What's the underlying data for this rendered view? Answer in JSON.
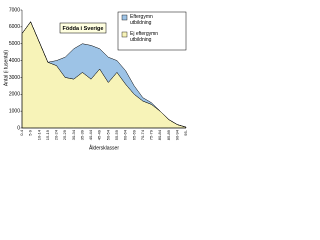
{
  "chart_data": {
    "type": "stacked-area",
    "title": "Födda i Sverige",
    "ylabel": "Antal (i tusental)",
    "xlabel": "Åldersklasser",
    "categories": [
      "0-4",
      "5-9",
      "10-14",
      "15-19",
      "20-24",
      "25-29",
      "30-34",
      "35-39",
      "40-44",
      "45-49",
      "50-54",
      "55-59",
      "60-64",
      "65-69",
      "70-74",
      "75-79",
      "80-84",
      "85-89",
      "90-94",
      "95-"
    ],
    "series": [
      {
        "name": "Eftergymn utbildning",
        "color": "#9dc3e6",
        "values": [
          0,
          0,
          0,
          0,
          300,
          1200,
          1800,
          1700,
          2000,
          1200,
          1500,
          700,
          800,
          500,
          200,
          100,
          0,
          0,
          0,
          0
        ]
      },
      {
        "name": "Ej eftergymn utbildning",
        "color": "#f7f3b8",
        "values": [
          5600,
          6300,
          5100,
          3900,
          3700,
          3000,
          2900,
          3300,
          2900,
          3500,
          2700,
          3300,
          2600,
          2000,
          1600,
          1400,
          1000,
          500,
          200,
          50
        ]
      }
    ],
    "ylim": [
      0,
      7000
    ],
    "yticks": [
      0,
      1000,
      2000,
      3000,
      4000,
      5000,
      6000,
      7000
    ]
  }
}
